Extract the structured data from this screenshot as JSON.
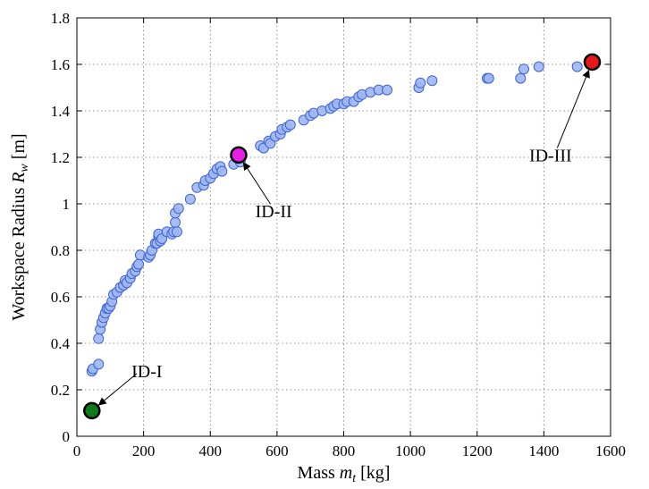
{
  "chart_data": {
    "type": "scatter",
    "xlabel": "Mass m_t [kg]",
    "xlabel_parts": {
      "pre": "Mass ",
      "var": "m",
      "sub": "t",
      "post": " [kg]"
    },
    "ylabel": "Workspace Radius R_w [m]",
    "ylabel_parts": {
      "pre": "Workspace Radius ",
      "var": "R",
      "sub": "w",
      "post": " [m]"
    },
    "xlim": [
      0,
      1600
    ],
    "ylim": [
      0,
      1.8
    ],
    "xticks": [
      0,
      200,
      400,
      600,
      800,
      1000,
      1200,
      1400,
      1600
    ],
    "xtick_labels": [
      "0",
      "200",
      "400",
      "600",
      "800",
      "1000",
      "1200",
      "1400",
      "1600"
    ],
    "yticks": [
      0,
      0.2,
      0.4,
      0.6,
      0.8,
      1.0,
      1.2,
      1.4,
      1.6,
      1.8
    ],
    "ytick_labels": [
      "0",
      "0.2",
      "0.4",
      "0.6",
      "0.8",
      "1",
      "1.2",
      "1.4",
      "1.6",
      "1.8"
    ],
    "grid": true,
    "marker_color": "#9fb7f2",
    "marker_edge": "#3f63d4",
    "series": [
      {
        "points": [
          [
            45,
            0.28
          ],
          [
            48,
            0.29
          ],
          [
            65,
            0.31
          ],
          [
            65,
            0.42
          ],
          [
            70,
            0.46
          ],
          [
            75,
            0.49
          ],
          [
            80,
            0.51
          ],
          [
            85,
            0.53
          ],
          [
            90,
            0.55
          ],
          [
            95,
            0.55
          ],
          [
            100,
            0.56
          ],
          [
            105,
            0.58
          ],
          [
            110,
            0.61
          ],
          [
            120,
            0.62
          ],
          [
            130,
            0.64
          ],
          [
            140,
            0.65
          ],
          [
            145,
            0.67
          ],
          [
            150,
            0.66
          ],
          [
            160,
            0.68
          ],
          [
            165,
            0.7
          ],
          [
            175,
            0.71
          ],
          [
            180,
            0.73
          ],
          [
            185,
            0.74
          ],
          [
            190,
            0.78
          ],
          [
            215,
            0.77
          ],
          [
            220,
            0.78
          ],
          [
            225,
            0.8
          ],
          [
            235,
            0.83
          ],
          [
            240,
            0.83
          ],
          [
            245,
            0.86
          ],
          [
            245,
            0.87
          ],
          [
            250,
            0.84
          ],
          [
            255,
            0.85
          ],
          [
            270,
            0.88
          ],
          [
            285,
            0.87
          ],
          [
            290,
            0.88
          ],
          [
            295,
            0.92
          ],
          [
            295,
            0.96
          ],
          [
            300,
            0.88
          ],
          [
            305,
            0.98
          ],
          [
            340,
            1.02
          ],
          [
            360,
            1.07
          ],
          [
            380,
            1.08
          ],
          [
            385,
            1.1
          ],
          [
            400,
            1.11
          ],
          [
            410,
            1.13
          ],
          [
            420,
            1.15
          ],
          [
            430,
            1.16
          ],
          [
            435,
            1.14
          ],
          [
            470,
            1.17
          ],
          [
            490,
            1.18
          ],
          [
            550,
            1.25
          ],
          [
            560,
            1.24
          ],
          [
            575,
            1.27
          ],
          [
            580,
            1.26
          ],
          [
            595,
            1.29
          ],
          [
            610,
            1.3
          ],
          [
            615,
            1.32
          ],
          [
            630,
            1.33
          ],
          [
            640,
            1.34
          ],
          [
            680,
            1.36
          ],
          [
            700,
            1.38
          ],
          [
            710,
            1.39
          ],
          [
            735,
            1.4
          ],
          [
            760,
            1.41
          ],
          [
            770,
            1.42
          ],
          [
            780,
            1.43
          ],
          [
            800,
            1.43
          ],
          [
            810,
            1.44
          ],
          [
            830,
            1.44
          ],
          [
            845,
            1.46
          ],
          [
            855,
            1.47
          ],
          [
            880,
            1.48
          ],
          [
            905,
            1.49
          ],
          [
            930,
            1.49
          ],
          [
            1025,
            1.5
          ],
          [
            1030,
            1.52
          ],
          [
            1065,
            1.53
          ],
          [
            1230,
            1.54
          ],
          [
            1235,
            1.54
          ],
          [
            1330,
            1.54
          ],
          [
            1340,
            1.58
          ],
          [
            1385,
            1.59
          ],
          [
            1500,
            1.59
          ]
        ]
      }
    ],
    "highlights": [
      {
        "label": "ID-I",
        "x": 45,
        "y": 0.11,
        "color": "#0c7a16",
        "text_x": 210,
        "text_y": 0.28,
        "arrow_from_x": 180,
        "arrow_from_y": 0.27
      },
      {
        "label": "ID-II",
        "x": 485,
        "y": 1.21,
        "color": "#e61ee6",
        "text_x": 590,
        "text_y": 0.97,
        "arrow_from_x": 580,
        "arrow_from_y": 1.0
      },
      {
        "label": "ID-III",
        "x": 1545,
        "y": 1.61,
        "color": "#e8191b",
        "text_x": 1420,
        "text_y": 1.21,
        "arrow_from_x": 1440,
        "arrow_from_y": 1.24
      }
    ]
  }
}
